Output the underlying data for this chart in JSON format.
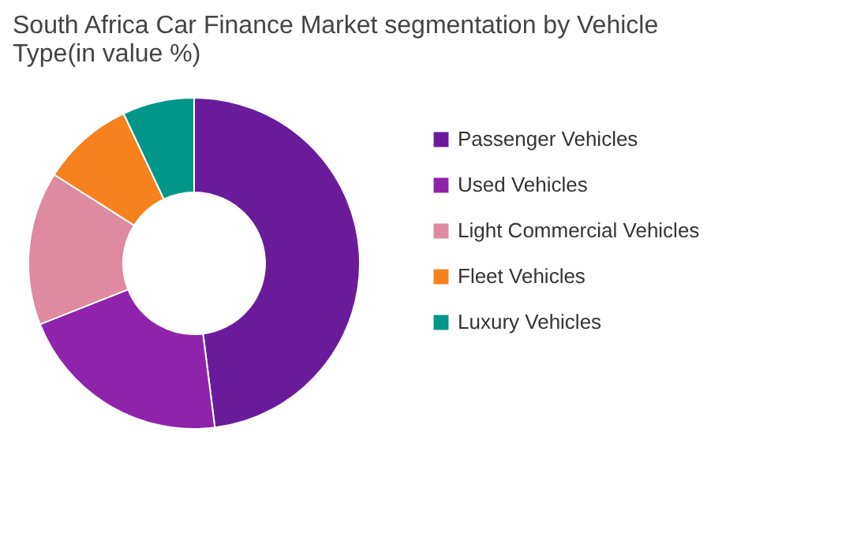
{
  "chart_data": {
    "type": "donut",
    "title": "South Africa Car Finance Market segmentation by Vehicle Type(in value %)",
    "categories": [
      "Passenger Vehicles",
      "Used Vehicles",
      "Light Commercial Vehicles",
      "Fleet Vehicles",
      "Luxury Vehicles"
    ],
    "values": [
      48,
      21,
      15,
      9,
      7
    ],
    "colors": [
      "#6a1b9a",
      "#8e24aa",
      "#de8aa0",
      "#f5821f",
      "#00968a"
    ],
    "legend": "right"
  }
}
